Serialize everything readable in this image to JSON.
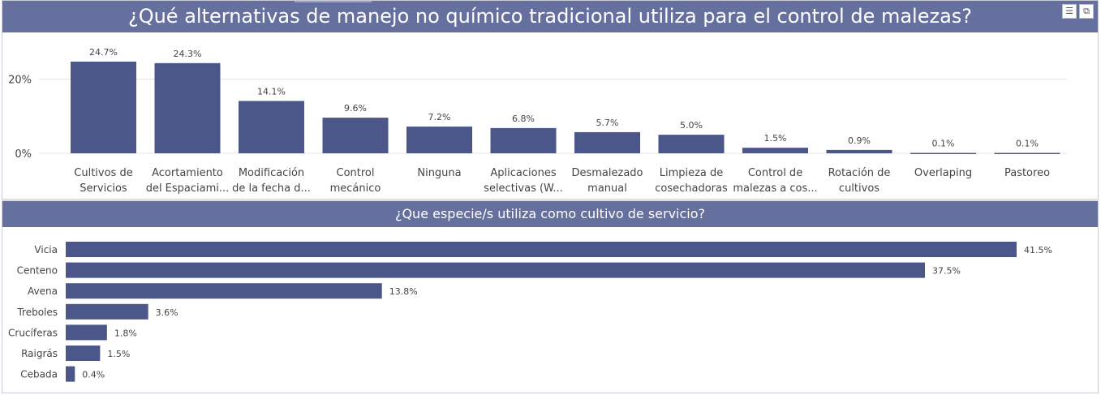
{
  "chart_data": [
    {
      "type": "bar",
      "title": "¿Qué alternativas de manejo no químico tradicional utiliza para el control de malezas?",
      "categories": [
        [
          "Cultivos de",
          "Servicios"
        ],
        [
          "Acortamiento",
          "del Espaciami..."
        ],
        [
          "Modificación",
          "de la fecha d..."
        ],
        [
          "Control",
          "mecánico"
        ],
        [
          "Ninguna"
        ],
        [
          "Aplicaciones",
          "selectivas (W..."
        ],
        [
          "Desmalezado",
          "manual"
        ],
        [
          "Limpieza de",
          "cosechadoras"
        ],
        [
          "Control de",
          "malezas a cos..."
        ],
        [
          "Rotación de",
          "cultivos"
        ],
        [
          "Overlaping"
        ],
        [
          "Pastoreo"
        ]
      ],
      "values": [
        24.7,
        24.3,
        14.1,
        9.6,
        7.2,
        6.8,
        5.7,
        5.0,
        1.5,
        0.9,
        0.1,
        0.1
      ],
      "data_labels": [
        "24.7%",
        "24.3%",
        "14.1%",
        "9.6%",
        "7.2%",
        "6.8%",
        "5.7%",
        "5.0%",
        "1.5%",
        "0.9%",
        "0.1%",
        "0.1%"
      ],
      "y_ticks": [
        {
          "value": 0,
          "label": "0%"
        },
        {
          "value": 20,
          "label": "20%"
        }
      ],
      "ylim": [
        0,
        24.7
      ],
      "grid": true,
      "color": "#4b5789"
    },
    {
      "type": "bar",
      "orientation": "horizontal",
      "title": "¿Que especie/s utiliza como cultivo de servicio?",
      "categories": [
        "Vicia",
        "Centeno",
        "Avena",
        "Treboles",
        "Crucíferas",
        "Raigrás",
        "Cebada"
      ],
      "values": [
        41.5,
        37.5,
        13.8,
        3.6,
        1.8,
        1.5,
        0.4
      ],
      "data_labels": [
        "41.5%",
        "37.5%",
        "13.8%",
        "3.6%",
        "1.8%",
        "1.5%",
        "0.4%"
      ],
      "xlim": [
        0,
        41.5
      ],
      "grid": false,
      "color": "#4b5789"
    }
  ],
  "colors": {
    "bar": "#4b5789",
    "title_bar": "#66709f",
    "grid": "#e6e6e6"
  },
  "icons": {
    "filter": "filter-icon",
    "focus": "focus-mode-icon"
  }
}
